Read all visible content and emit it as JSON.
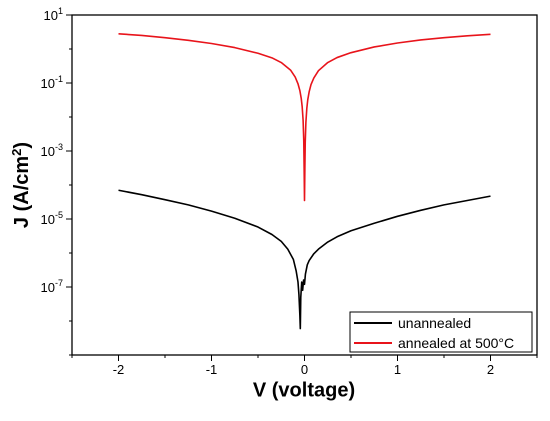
{
  "chart_data": {
    "type": "line",
    "xlabel": "V (voltage)",
    "ylabel": "J (A/cm²)",
    "ylabel_parts": {
      "prefix": "J (A/cm",
      "sup": "2",
      "suffix": ")"
    },
    "xscale": "linear",
    "yscale": "log",
    "xlim": [
      -2.5,
      2.5
    ],
    "ylim": [
      1e-09,
      10
    ],
    "xticks": [
      {
        "value": -2,
        "label": "-2"
      },
      {
        "value": -1,
        "label": "-1"
      },
      {
        "value": 0,
        "label": "0"
      },
      {
        "value": 1,
        "label": "1"
      },
      {
        "value": 2,
        "label": "2"
      }
    ],
    "yticks": [
      {
        "value": 10,
        "base": "10",
        "exp": "1"
      },
      {
        "value": 0.1,
        "base": "10",
        "exp": "-1"
      },
      {
        "value": 0.001,
        "base": "10",
        "exp": "-3"
      },
      {
        "value": 1e-05,
        "base": "10",
        "exp": "-5"
      },
      {
        "value": 1e-07,
        "base": "10",
        "exp": "-7"
      }
    ],
    "legend_position": "bottom-right",
    "series": [
      {
        "name": "unannealed",
        "color": "#000000",
        "x": [
          -2,
          -1.75,
          -1.5,
          -1.25,
          -1,
          -0.75,
          -0.5,
          -0.35,
          -0.25,
          -0.18,
          -0.12,
          -0.09,
          -0.07,
          -0.06,
          -0.05,
          -0.045,
          -0.04,
          -0.03,
          -0.02,
          -0.01,
          0,
          0.01,
          0.03,
          0.05,
          0.1,
          0.15,
          0.25,
          0.35,
          0.5,
          0.75,
          1,
          1.25,
          1.5,
          1.75,
          2
        ],
        "y": [
          7e-05,
          5.2e-05,
          3.7e-05,
          2.6e-05,
          1.7e-05,
          1.05e-05,
          5.8e-06,
          3.5e-06,
          2.2e-06,
          1.3e-06,
          6.5e-07,
          3e-07,
          1.4e-07,
          6e-08,
          1.5e-08,
          6e-09,
          5e-08,
          1.4e-07,
          8e-08,
          1.6e-07,
          1.2e-07,
          2.4e-07,
          4.5e-07,
          6e-07,
          9.5e-07,
          1.3e-06,
          2.1e-06,
          3e-06,
          4.5e-06,
          7.5e-06,
          1.2e-05,
          1.8e-05,
          2.6e-05,
          3.5e-05,
          4.7e-05
        ]
      },
      {
        "name": "annealed at 500°C",
        "color": "#e8141b",
        "x": [
          -2,
          -1.75,
          -1.5,
          -1.25,
          -1,
          -0.75,
          -0.5,
          -0.35,
          -0.25,
          -0.15,
          -0.1,
          -0.07,
          -0.05,
          -0.035,
          -0.025,
          -0.015,
          -0.008,
          -0.004,
          0,
          0.004,
          0.008,
          0.015,
          0.025,
          0.035,
          0.05,
          0.07,
          0.1,
          0.15,
          0.25,
          0.35,
          0.5,
          0.75,
          1,
          1.25,
          1.5,
          1.75,
          2
        ],
        "y": [
          2.8,
          2.5,
          2.15,
          1.8,
          1.45,
          1.1,
          0.75,
          0.55,
          0.4,
          0.24,
          0.15,
          0.095,
          0.06,
          0.035,
          0.02,
          0.008,
          0.002,
          0.0003,
          3.5e-05,
          0.0003,
          0.0018,
          0.007,
          0.018,
          0.032,
          0.055,
          0.09,
          0.14,
          0.23,
          0.4,
          0.56,
          0.78,
          1.15,
          1.5,
          1.85,
          2.15,
          2.45,
          2.7
        ]
      }
    ]
  }
}
